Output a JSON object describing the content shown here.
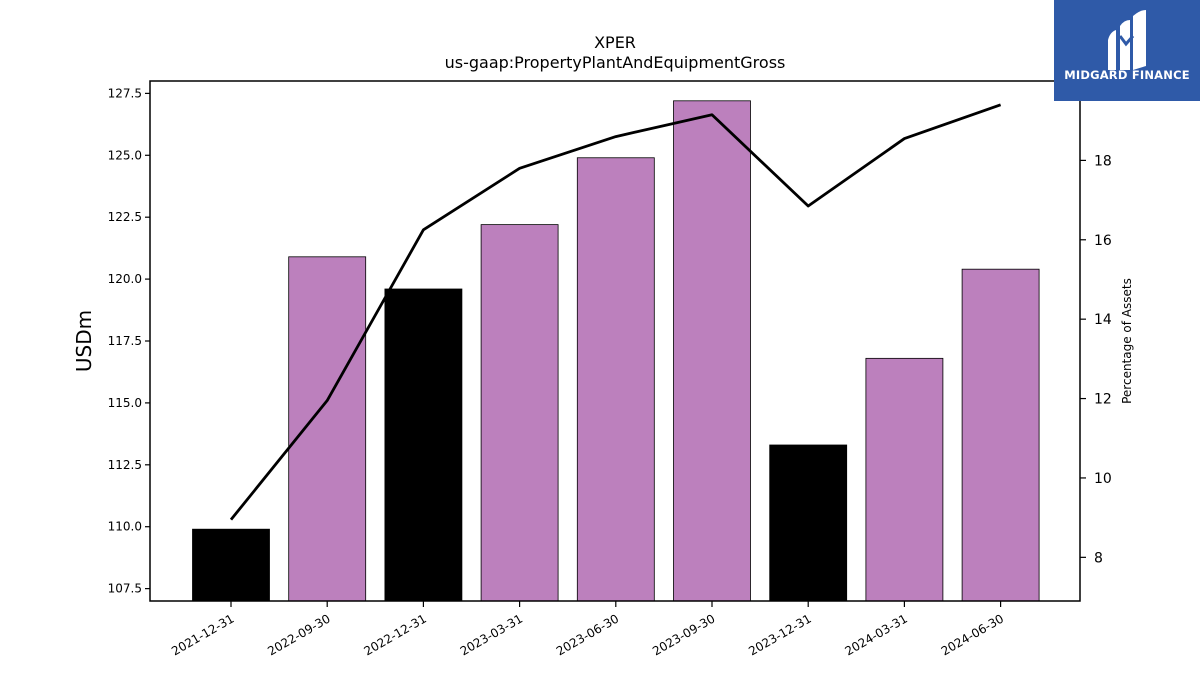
{
  "logo": {
    "text": "MIDGARD FINANCE",
    "icon": "midgard-logo-icon",
    "background": "#2f5aa8"
  },
  "chart_data": {
    "type": "bar",
    "title": "XPER",
    "subtitle": "us-gaap:PropertyPlantAndEquipmentGross",
    "ylabel": "USDm",
    "y2label": "Percentage of Assets",
    "ylim": [
      107.0,
      128.0
    ],
    "y2lim": [
      6.9,
      20.0
    ],
    "yticks": [
      "107.5",
      "110.0",
      "112.5",
      "115.0",
      "117.5",
      "120.0",
      "122.5",
      "125.0",
      "127.5"
    ],
    "y2ticks": [
      "8",
      "10",
      "12",
      "14",
      "16",
      "18"
    ],
    "categories": [
      "2021-12-31",
      "2022-09-30",
      "2022-12-31",
      "2023-03-31",
      "2023-06-30",
      "2023-09-30",
      "2023-12-31",
      "2024-03-31",
      "2024-06-30"
    ],
    "values": [
      109.9,
      120.9,
      119.6,
      122.2,
      124.9,
      127.2,
      113.3,
      116.8,
      120.4
    ],
    "bar_colors": [
      "#000000",
      "#bc80bd",
      "#000000",
      "#bc80bd",
      "#bc80bd",
      "#bc80bd",
      "#000000",
      "#bc80bd",
      "#bc80bd"
    ],
    "line": {
      "values": [
        8.95,
        11.95,
        16.25,
        17.8,
        18.6,
        19.15,
        16.85,
        18.55,
        19.4
      ],
      "color": "#000000"
    },
    "grid": false
  }
}
